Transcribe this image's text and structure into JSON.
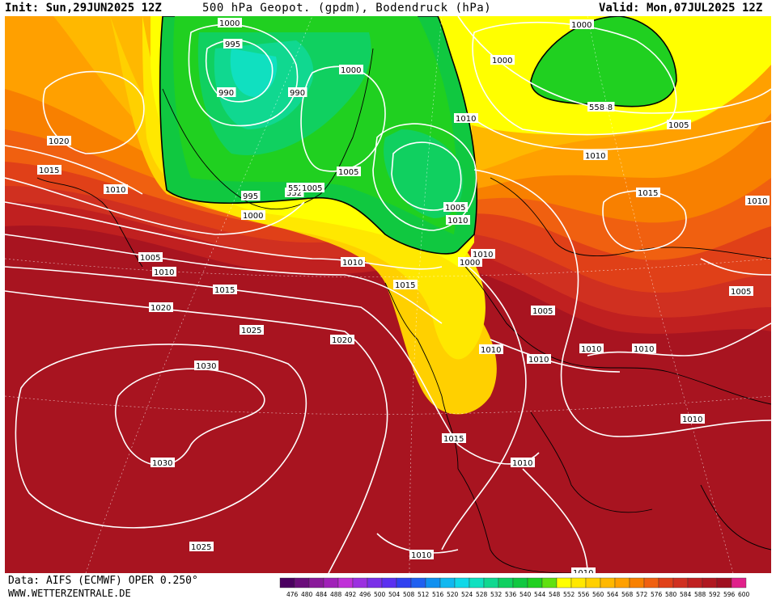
{
  "header": {
    "init": "Init: Sun,29JUN2025 12Z",
    "title": "500 hPa Geopot. (gpdm), Bodendruck (hPa)",
    "valid": "Valid: Mon,07JUL2025 12Z"
  },
  "footer": {
    "data_source": "Data: AIFS (ECMWF) OPER 0.250°",
    "website": "WWW.WETTERZENTRALE.DE"
  },
  "colorbar": {
    "values": [
      "476",
      "480",
      "484",
      "488",
      "492",
      "496",
      "500",
      "504",
      "508",
      "512",
      "516",
      "520",
      "524",
      "528",
      "532",
      "536",
      "540",
      "544",
      "548",
      "552",
      "556",
      "560",
      "564",
      "568",
      "572",
      "576",
      "580",
      "584",
      "588",
      "592",
      "596",
      "600"
    ],
    "colors": [
      "#4b0060",
      "#6a0d7a",
      "#8a1a9a",
      "#a020b8",
      "#c030d8",
      "#9b30e0",
      "#7a30e8",
      "#5a30f0",
      "#3040f0",
      "#2060f0",
      "#1090f0",
      "#10b8f0",
      "#10d8e8",
      "#10e0c0",
      "#10d890",
      "#10d060",
      "#10c840",
      "#20d020",
      "#60e010",
      "#ffff00",
      "#ffe800",
      "#ffd000",
      "#ffb800",
      "#ffa000",
      "#f88000",
      "#f06010",
      "#e04018",
      "#d03020",
      "#c02020",
      "#b01820",
      "#a01020",
      "#e0208a"
    ]
  },
  "isobar_labels": [
    {
      "text": "1000"
    },
    {
      "text": "995"
    },
    {
      "text": "990"
    },
    {
      "text": "1000"
    },
    {
      "text": "990"
    },
    {
      "text": "552"
    },
    {
      "text": "1000"
    },
    {
      "text": "558"
    },
    {
      "text": "1010"
    },
    {
      "text": "1005"
    },
    {
      "text": "1020"
    },
    {
      "text": "1015"
    },
    {
      "text": "1010"
    },
    {
      "text": "1005"
    },
    {
      "text": "552"
    },
    {
      "text": "995"
    },
    {
      "text": "1000"
    },
    {
      "text": "1005"
    },
    {
      "text": "1010"
    },
    {
      "text": "1015"
    },
    {
      "text": "1000"
    },
    {
      "text": "1005"
    },
    {
      "text": "1010"
    },
    {
      "text": "1015"
    },
    {
      "text": "1010"
    },
    {
      "text": "1005"
    },
    {
      "text": "1010"
    },
    {
      "text": "1010"
    },
    {
      "text": "1015"
    },
    {
      "text": "1020"
    },
    {
      "text": "1025"
    },
    {
      "text": "1020"
    },
    {
      "text": "1010"
    },
    {
      "text": "1010"
    },
    {
      "text": "1005"
    },
    {
      "text": "1010"
    },
    {
      "text": "1010"
    },
    {
      "text": "1005"
    },
    {
      "text": "1010"
    },
    {
      "text": "1030"
    },
    {
      "text": "1030"
    },
    {
      "text": "1015"
    },
    {
      "text": "1010"
    },
    {
      "text": "1010"
    },
    {
      "text": "1025"
    },
    {
      "text": "1010"
    },
    {
      "text": "1010"
    },
    {
      "text": "558"
    },
    {
      "text": "1000"
    }
  ]
}
